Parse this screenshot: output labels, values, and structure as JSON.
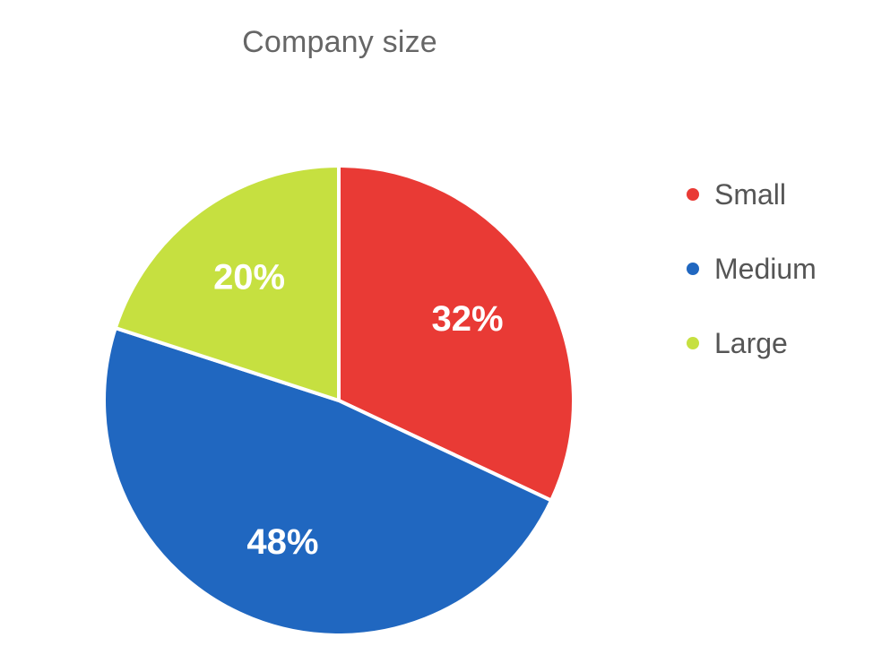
{
  "chart_data": {
    "type": "pie",
    "title": "Company size",
    "slices": [
      {
        "label": "Small",
        "value": 32,
        "display": "32%",
        "color": "#E93A35"
      },
      {
        "label": "Medium",
        "value": 48,
        "display": "48%",
        "color": "#2067C0"
      },
      {
        "label": "Large",
        "value": 20,
        "display": "20%",
        "color": "#C6E040"
      }
    ],
    "legend_position": "right",
    "start_angle": "top",
    "direction": "clockwise"
  }
}
